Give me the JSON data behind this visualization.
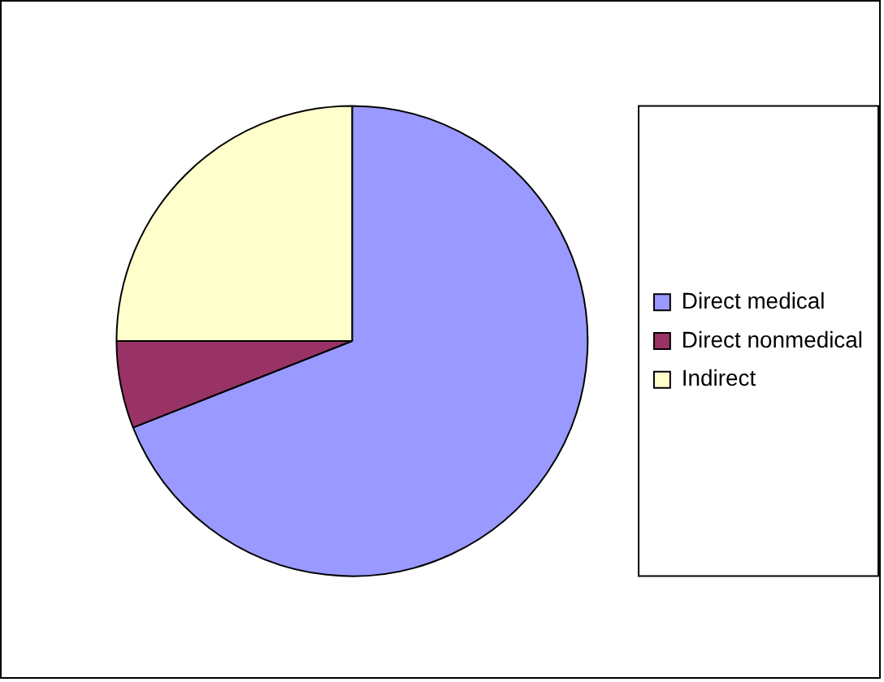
{
  "chart_data": {
    "type": "pie",
    "categories": [
      "Direct medical",
      "Direct nonmedical",
      "Indirect"
    ],
    "values": [
      69,
      6,
      25
    ],
    "colors": [
      "#9999ff",
      "#993366",
      "#ffffcc"
    ],
    "legend": "right"
  }
}
